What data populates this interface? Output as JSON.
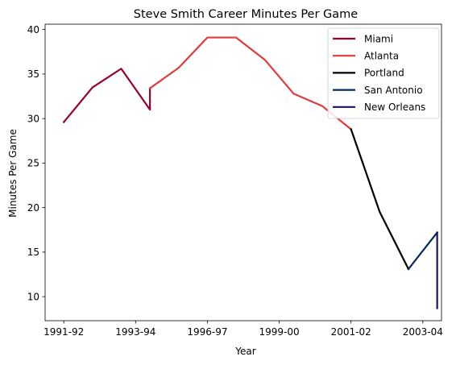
{
  "chart_data": {
    "type": "line",
    "title": "Steve Smith  Career Minutes Per Game",
    "xlabel": "Year",
    "ylabel": "Minutes Per Game",
    "x_ticks": [
      "1991-92",
      "1993-94",
      "1996-97",
      "1999-00",
      "2001-02",
      "2003-04"
    ],
    "x_tick_positions": [
      0,
      2.5,
      5,
      7.5,
      10,
      12.5
    ],
    "xlim": [
      -0.65,
      13.15
    ],
    "ylim": [
      7.3,
      40.6
    ],
    "y_ticks": [
      10,
      15,
      20,
      25,
      30,
      35,
      40
    ],
    "grid": false,
    "legend_position": "top-right",
    "series": [
      {
        "name": "Miami",
        "color": "#98002e",
        "x": [
          0,
          1,
          2,
          3,
          3
        ],
        "y": [
          29.6,
          33.5,
          35.6,
          31.0,
          33.4
        ]
      },
      {
        "name": "Atlanta",
        "color": "#e03a3e",
        "x": [
          3,
          4,
          5,
          6,
          7,
          8,
          9,
          10
        ],
        "y": [
          33.4,
          35.7,
          39.1,
          39.1,
          36.6,
          32.8,
          31.4,
          28.8
        ]
      },
      {
        "name": "Portland",
        "color": "#000000",
        "x": [
          10,
          11,
          12
        ],
        "y": [
          28.8,
          19.5,
          13.1
        ]
      },
      {
        "name": "San Antonio",
        "color": "#002b5c",
        "x": [
          12,
          13
        ],
        "y": [
          13.1,
          17.2
        ]
      },
      {
        "name": "New Orleans",
        "color": "#1d1160",
        "x": [
          13,
          13
        ],
        "y": [
          17.2,
          8.7
        ]
      }
    ]
  }
}
